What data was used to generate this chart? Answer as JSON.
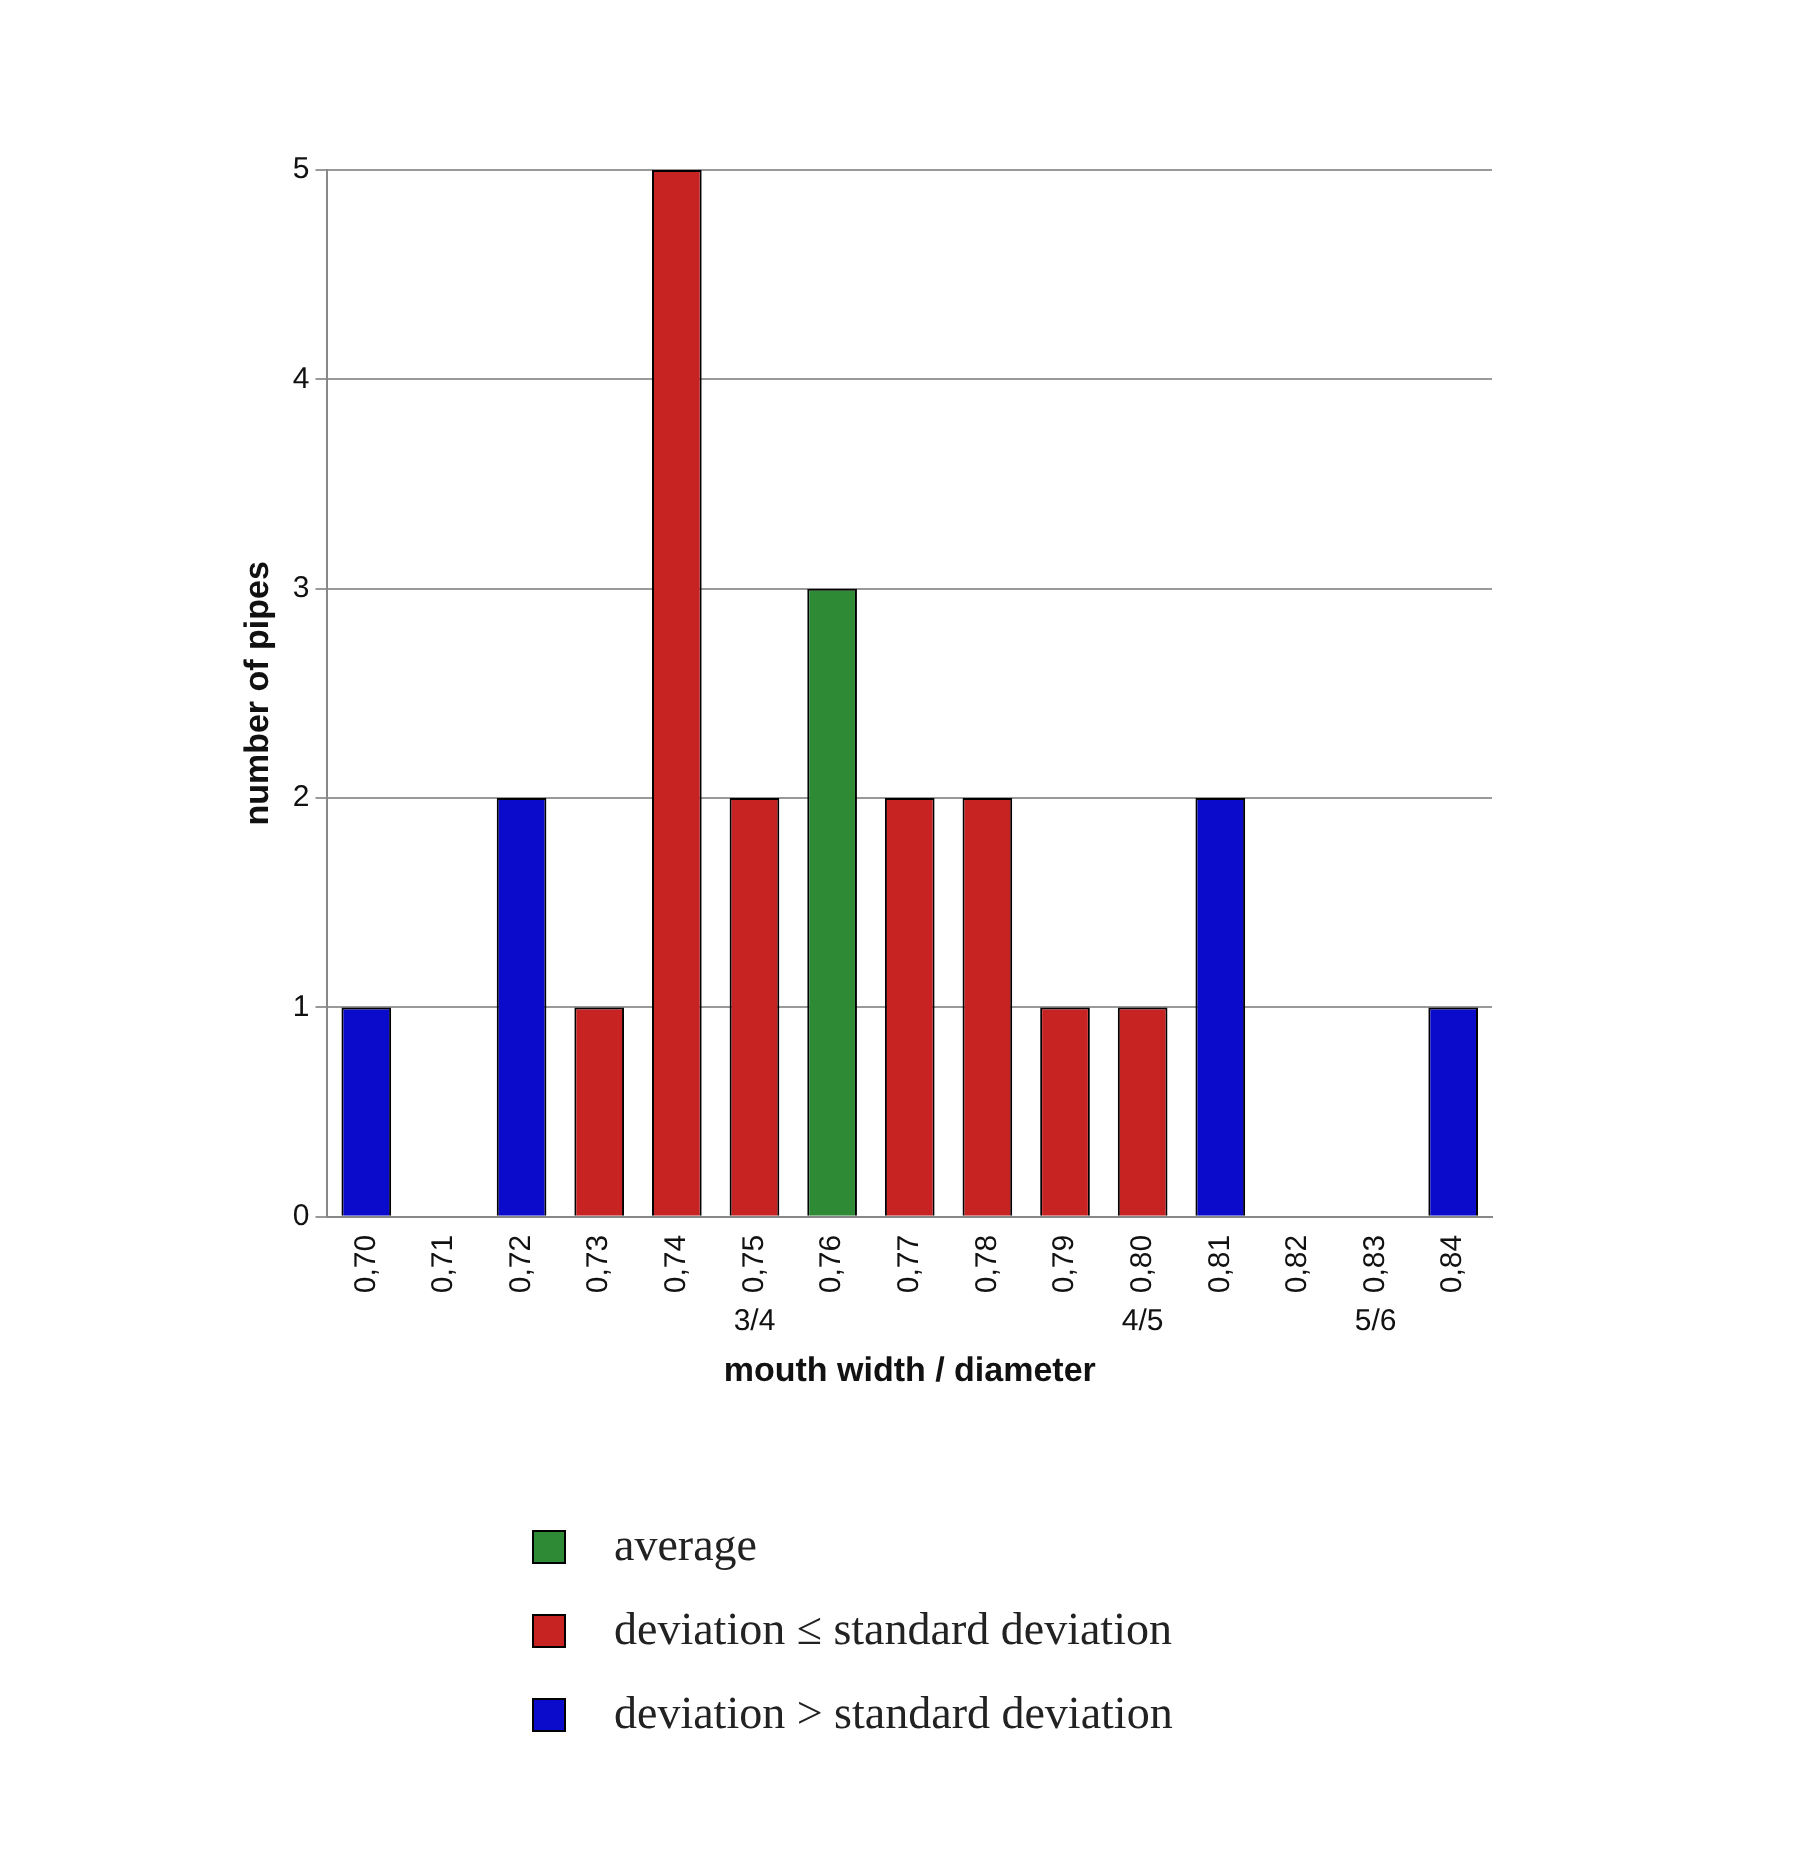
{
  "chart_data": {
    "type": "bar",
    "xlabel": "mouth width / diameter",
    "ylabel": "number of pipes",
    "categories": [
      "0,70",
      "0,71",
      "0,72",
      "0,73",
      "0,74",
      "0,75",
      "0,76",
      "0,77",
      "0,78",
      "0,79",
      "0,80",
      "0,81",
      "0,82",
      "0,83",
      "0,84"
    ],
    "series": [
      {
        "name": "average",
        "color": "#2e8a35",
        "values": [
          null,
          null,
          null,
          null,
          null,
          null,
          3,
          null,
          null,
          null,
          null,
          null,
          null,
          null,
          null
        ]
      },
      {
        "name": "deviation ≤ standard deviation",
        "color": "#c82323",
        "values": [
          null,
          null,
          null,
          1,
          5,
          2,
          null,
          2,
          2,
          1,
          1,
          null,
          null,
          null,
          null
        ]
      },
      {
        "name": "deviation > standard deviation",
        "color": "#0b0bcc",
        "values": [
          1,
          0,
          2,
          null,
          null,
          null,
          null,
          null,
          null,
          null,
          null,
          2,
          0,
          0,
          1
        ]
      }
    ],
    "ylim": [
      0,
      5
    ],
    "yticks": [
      0,
      1,
      2,
      3,
      4,
      5
    ],
    "grid": "y",
    "legend": "bottom",
    "annotations": [
      "3/4",
      "4/5",
      "5/6"
    ]
  }
}
